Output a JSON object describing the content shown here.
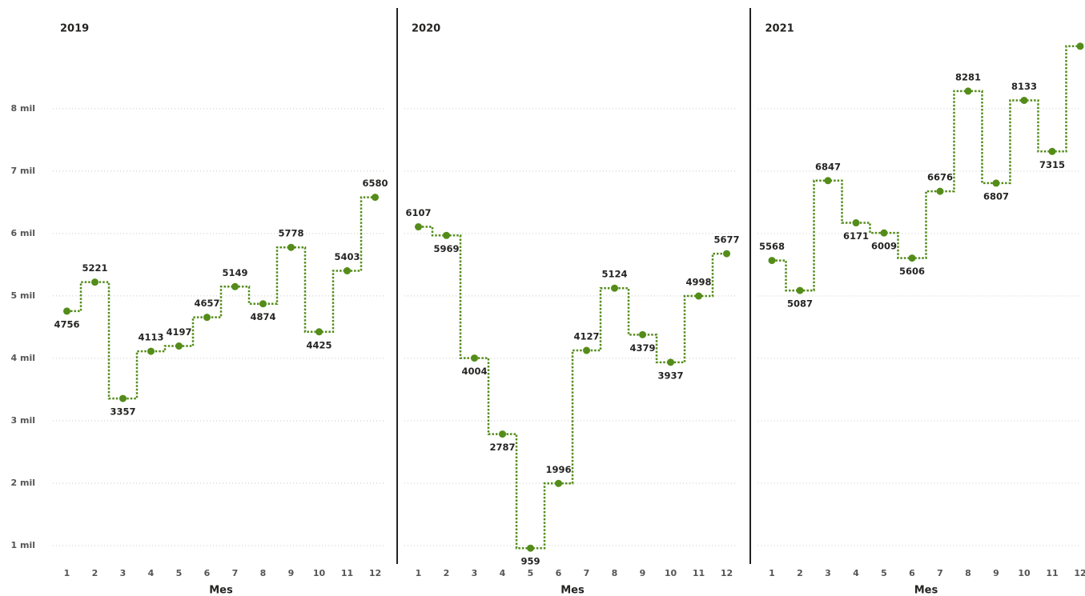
{
  "chart_data": {
    "type": "line",
    "step": true,
    "facets": true,
    "grid": true,
    "color": "#548c1a",
    "x_label": "Mes",
    "categories": [
      "1",
      "2",
      "3",
      "4",
      "5",
      "6",
      "7",
      "8",
      "9",
      "10",
      "11",
      "12"
    ],
    "ylim": [
      750,
      9100
    ],
    "yticks": [
      {
        "value": 1000,
        "label": "1 mil"
      },
      {
        "value": 2000,
        "label": "2 mil"
      },
      {
        "value": 3000,
        "label": "3 mil"
      },
      {
        "value": 4000,
        "label": "4 mil"
      },
      {
        "value": 5000,
        "label": "5 mil"
      },
      {
        "value": 6000,
        "label": "6 mil"
      },
      {
        "value": 7000,
        "label": "7 mil"
      },
      {
        "value": 8000,
        "label": "8 mil"
      }
    ],
    "series": [
      {
        "name": "2019",
        "values": [
          4756,
          5221,
          3357,
          4113,
          4197,
          4657,
          5149,
          4874,
          5778,
          4425,
          5403,
          6580
        ]
      },
      {
        "name": "2020",
        "values": [
          6107,
          5969,
          4004,
          2787,
          959,
          1996,
          4127,
          5124,
          4379,
          3937,
          4998,
          5677
        ]
      },
      {
        "name": "2021",
        "values": [
          5568,
          5087,
          6847,
          6171,
          6009,
          5606,
          6676,
          8281,
          6807,
          8133,
          7315,
          9000
        ],
        "value_labels": [
          "5568",
          "5087",
          "6847",
          "6171",
          "6009",
          "5606",
          "6676",
          "8281",
          "6807",
          "8133",
          "7315",
          null
        ]
      }
    ]
  }
}
